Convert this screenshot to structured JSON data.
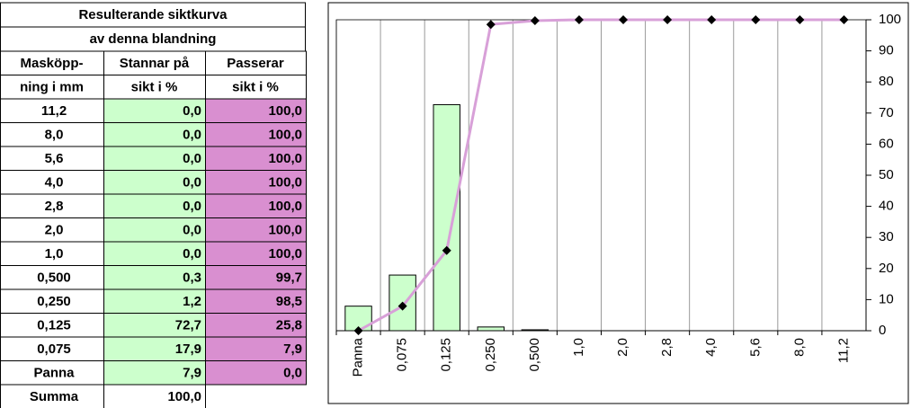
{
  "table": {
    "title": [
      "Resulterande siktkurva",
      "av denna blandning"
    ],
    "headers": [
      [
        "Masköpp-",
        "Stannar på",
        "Passerar"
      ],
      [
        "ning i mm",
        "sikt i %",
        "sikt i %"
      ]
    ],
    "rows": [
      [
        "11,2",
        "0,0",
        "100,0"
      ],
      [
        "8,0",
        "0,0",
        "100,0"
      ],
      [
        "5,6",
        "0,0",
        "100,0"
      ],
      [
        "4,0",
        "0,0",
        "100,0"
      ],
      [
        "2,8",
        "0,0",
        "100,0"
      ],
      [
        "2,0",
        "0,0",
        "100,0"
      ],
      [
        "1,0",
        "0,0",
        "100,0"
      ],
      [
        "0,500",
        "0,3",
        "99,7"
      ],
      [
        "0,250",
        "1,2",
        "98,5"
      ],
      [
        "0,125",
        "72,7",
        "25,8"
      ],
      [
        "0,075",
        "17,9",
        "7,9"
      ],
      [
        "Panna",
        "7,9",
        "0,0"
      ]
    ],
    "footer": [
      "Summa",
      "100,0"
    ]
  },
  "chart_data": {
    "type": "bar_line",
    "categories": [
      "Panna",
      "0,075",
      "0,125",
      "0,250",
      "0,500",
      "1,0",
      "2,0",
      "2,8",
      "4,0",
      "5,6",
      "8,0",
      "11,2"
    ],
    "series": [
      {
        "type": "bar",
        "color": "#ccffcc",
        "values": [
          7.9,
          17.9,
          72.7,
          1.2,
          0.3,
          0,
          0,
          0,
          0,
          0,
          0,
          0
        ]
      },
      {
        "type": "line",
        "color": "#d8a0d8",
        "marker_color": "#000000",
        "values": [
          0,
          7.9,
          25.8,
          98.5,
          99.7,
          100,
          100,
          100,
          100,
          100,
          100,
          100
        ]
      }
    ],
    "ylim": [
      0,
      100
    ],
    "yticks": [
      0,
      10,
      20,
      30,
      40,
      50,
      60,
      70,
      80,
      90,
      100
    ],
    "y_axis_side": "right",
    "grid": "x"
  }
}
